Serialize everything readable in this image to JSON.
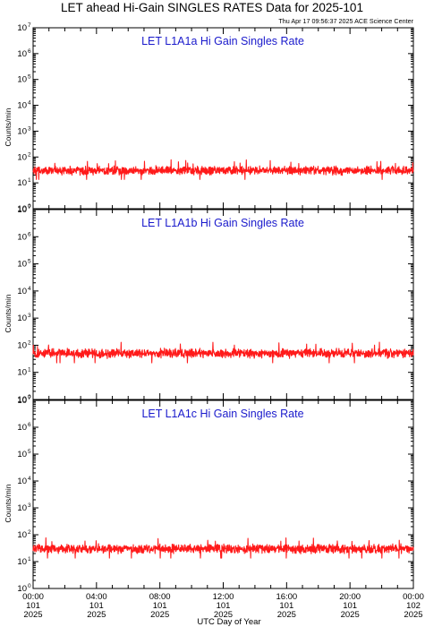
{
  "title": "LET ahead Hi-Gain SINGLES RATES Data for 2025-101",
  "timestamp": "Thu Apr 17 09:56:37 2025 ACE Science Center",
  "xlabel": "UTC Day of Year",
  "ylabel": "Counts/min",
  "colors": {
    "series": "#ff1a1a",
    "panel_title": "#1a1acc",
    "frame": "#000000"
  },
  "chart_data": [
    {
      "type": "line",
      "title": "LET L1A1a Hi Gain Singles Rate",
      "yscale": "log",
      "ylim": [
        1,
        10000000
      ],
      "xlim_hours": [
        0,
        24
      ],
      "typical_value": 30,
      "series": [
        {
          "values": "noisy rate around ~30 counts/min with periodic spikes up to ~60"
        }
      ]
    },
    {
      "type": "line",
      "title": "LET L1A1b Hi Gain Singles Rate",
      "yscale": "log",
      "ylim": [
        1,
        10000000
      ],
      "xlim_hours": [
        0,
        24
      ],
      "typical_value": 50,
      "series": [
        {
          "values": "noisy rate around ~50 counts/min with periodic spikes up to ~80"
        }
      ]
    },
    {
      "type": "line",
      "title": "LET L1A1c Hi Gain Singles Rate",
      "yscale": "log",
      "ylim": [
        1,
        10000000
      ],
      "xlim_hours": [
        0,
        24
      ],
      "typical_value": 30,
      "series": [
        {
          "values": "noisy rate around ~30 counts/min with periodic spikes up to ~70"
        }
      ]
    }
  ],
  "x_ticks": [
    {
      "time": "00:00",
      "doy": "101",
      "year": "2025"
    },
    {
      "time": "04:00",
      "doy": "101",
      "year": "2025"
    },
    {
      "time": "08:00",
      "doy": "101",
      "year": "2025"
    },
    {
      "time": "12:00",
      "doy": "101",
      "year": "2025"
    },
    {
      "time": "16:00",
      "doy": "101",
      "year": "2025"
    },
    {
      "time": "20:00",
      "doy": "101",
      "year": "2025"
    },
    {
      "time": "00:00",
      "doy": "102",
      "year": "2025"
    }
  ],
  "y_ticks": [
    {
      "base": "10",
      "exp": "0"
    },
    {
      "base": "10",
      "exp": "1"
    },
    {
      "base": "10",
      "exp": "2"
    },
    {
      "base": "10",
      "exp": "3"
    },
    {
      "base": "10",
      "exp": "4"
    },
    {
      "base": "10",
      "exp": "5"
    },
    {
      "base": "10",
      "exp": "6"
    },
    {
      "base": "10",
      "exp": "7"
    }
  ]
}
